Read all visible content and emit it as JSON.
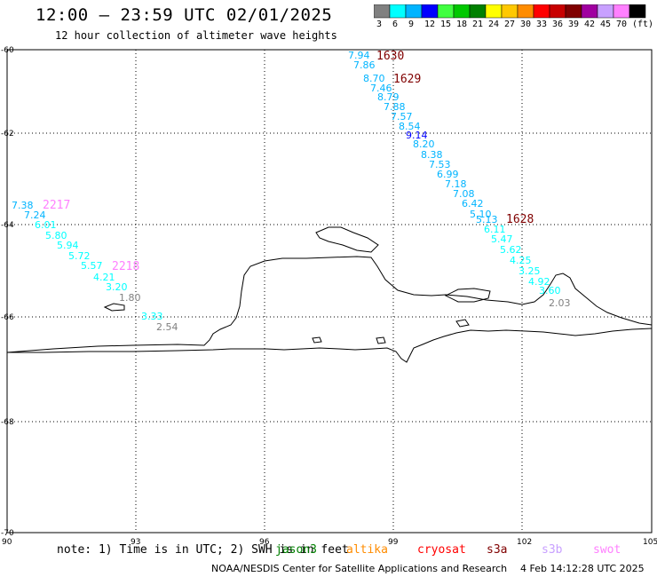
{
  "header": {
    "title": "12:00 – 23:59 UTC 02/01/2025",
    "subtitle": "12 hour collection of altimeter wave heights"
  },
  "color_scale": {
    "colors": [
      "#808080",
      "#00ffff",
      "#00b4ff",
      "#0000ff",
      "#40ff40",
      "#00c800",
      "#008000",
      "#ffff00",
      "#ffc800",
      "#ff8c00",
      "#ff0000",
      "#c80000",
      "#800000",
      "#a000a0",
      "#c8a0ff",
      "#ff80ff",
      "#000000"
    ],
    "labels": [
      "3",
      "6",
      "9",
      "12",
      "15",
      "18",
      "21",
      "24",
      "27",
      "30",
      "33",
      "36",
      "39",
      "42",
      "45",
      "70",
      "(ft)"
    ]
  },
  "map": {
    "x_ticks": [
      "90",
      "93",
      "96",
      "99",
      "102",
      "105"
    ],
    "y_ticks": [
      "-60",
      "-62",
      "-64",
      "-66",
      "-68",
      "-70"
    ],
    "pass_labels": [
      {
        "text": "1630",
        "color": "#800000"
      },
      {
        "text": "1629",
        "color": "#800000"
      },
      {
        "text": "1628",
        "color": "#800000"
      },
      {
        "text": "2217",
        "color": "#ff80ff"
      },
      {
        "text": "2218",
        "color": "#ff80ff"
      }
    ],
    "track_1630": {
      "values": [
        "7.94",
        "7.86",
        "8.70",
        "7.46",
        "8.79",
        "7.88",
        "7.57",
        "8.54",
        "9.14",
        "8.20",
        "8.38",
        "7.53",
        "6.99",
        "7.18",
        "7.08",
        "6.42",
        "5.10",
        "5.13",
        "6.11",
        "5.47",
        "5.62",
        "4.25",
        "3.25",
        "4.92",
        "3.60",
        "2.03"
      ],
      "colors": [
        "#00b4ff",
        "#00b4ff",
        "#00b4ff",
        "#00b4ff",
        "#00b4ff",
        "#00b4ff",
        "#00b4ff",
        "#00b4ff",
        "#0000ff",
        "#00b4ff",
        "#00b4ff",
        "#00b4ff",
        "#00b4ff",
        "#00b4ff",
        "#00b4ff",
        "#00b4ff",
        "#00b4ff",
        "#00b4ff",
        "#00ffff",
        "#00ffff",
        "#00ffff",
        "#00ffff",
        "#00ffff",
        "#00ffff",
        "#00ffff",
        "#808080"
      ]
    },
    "track_2217": {
      "values": [
        "7.38",
        "7.24",
        "6.01",
        "5.80",
        "5.94",
        "5.72",
        "5.57",
        "4.21",
        "3.20",
        "1.80",
        "3.33",
        "2.54"
      ],
      "colors": [
        "#00b4ff",
        "#00b4ff",
        "#00ffff",
        "#00ffff",
        "#00ffff",
        "#00ffff",
        "#00ffff",
        "#00ffff",
        "#00ffff",
        "#808080",
        "#00ffff",
        "#808080"
      ]
    }
  },
  "footer": {
    "note": "note: 1) Time is in UTC; 2) SWH is in feet",
    "legend": [
      {
        "text": "jason3",
        "color": "#008000"
      },
      {
        "text": "altika",
        "color": "#ff8c00"
      },
      {
        "text": "cryosat",
        "color": "#ff0000"
      },
      {
        "text": "s3a",
        "color": "#800000"
      },
      {
        "text": "s3b",
        "color": "#c8a0ff"
      },
      {
        "text": "swot",
        "color": "#ff80ff"
      }
    ],
    "credit": "NOAA/NESDIS Center for Satellite Applications and Research",
    "timestamp": "4 Feb 14:12:28 UTC 2025"
  }
}
